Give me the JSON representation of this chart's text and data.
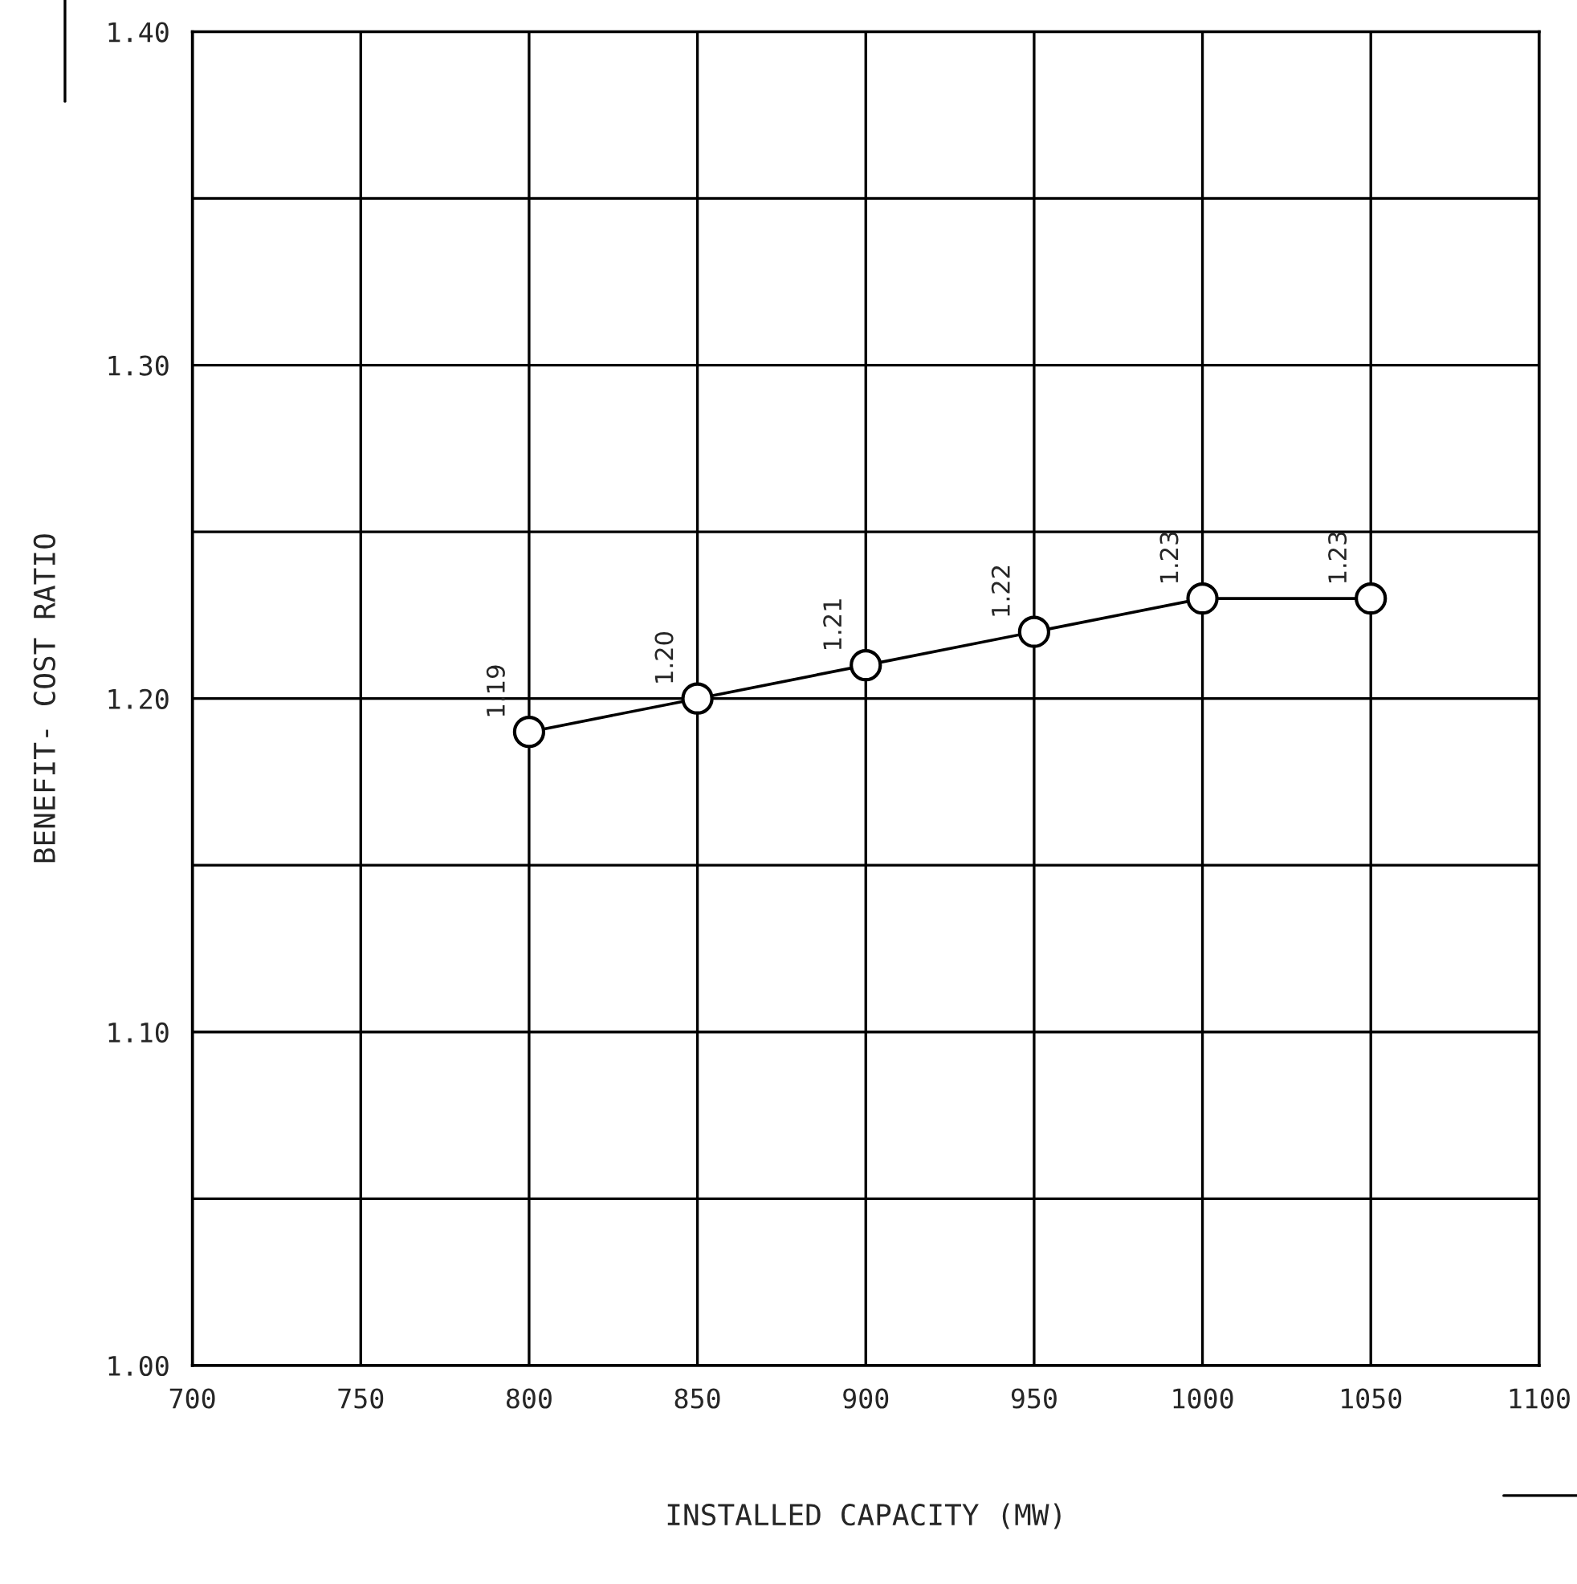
{
  "chart_data": {
    "type": "line",
    "xlabel": "INSTALLED CAPACITY (MW)",
    "ylabel": "BENEFIT- COST RATIO",
    "x": [
      800,
      850,
      900,
      950,
      1000,
      1050
    ],
    "series": [
      {
        "color": "#000000",
        "values": [
          1.19,
          1.2,
          1.21,
          1.22,
          1.23,
          1.23
        ],
        "value_labels": [
          "1.19",
          "1.20",
          "1.21",
          "1.22",
          "1.23",
          "1.23"
        ]
      }
    ],
    "xlim": [
      700,
      1100
    ],
    "xticks": [
      700,
      750,
      800,
      850,
      900,
      950,
      1000,
      1050,
      1100
    ],
    "ylim": [
      1.0,
      1.4
    ],
    "yticks": [
      {
        "value": 1.0,
        "label": "1.00"
      },
      {
        "value": 1.05,
        "label": null
      },
      {
        "value": 1.1,
        "label": "1.10"
      },
      {
        "value": 1.15,
        "label": null
      },
      {
        "value": 1.2,
        "label": "1.20"
      },
      {
        "value": 1.25,
        "label": null
      },
      {
        "value": 1.3,
        "label": "1.30"
      },
      {
        "value": 1.35,
        "label": null
      },
      {
        "value": 1.4,
        "label": "1.40"
      }
    ],
    "grid": true,
    "marker": "circle",
    "line_style": "solid"
  }
}
